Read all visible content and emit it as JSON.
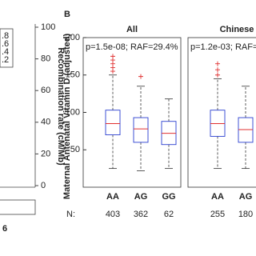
{
  "chart_data": [
    {
      "type": "scatter",
      "ylabel": "Recombination rate (cM/Mb)",
      "ylim": [
        0,
        100
      ],
      "yticks": [
        0,
        20,
        40,
        60,
        80,
        100
      ],
      "legend_labels": [
        ".8",
        ".6",
        ".4",
        ".2"
      ],
      "xticks": [
        6
      ],
      "color": "#1f3fbf"
    },
    {
      "type": "box",
      "panel_label": "B",
      "title": "All",
      "ylabel": "Maternal Antenatal Vitamin D (adjusted)",
      "annotation": "p=1.5e-08; RAF=29.4%",
      "ylim": [
        0,
        200
      ],
      "yticks": [
        50,
        100,
        150,
        200
      ],
      "categories": [
        "AA",
        "AG",
        "GG"
      ],
      "n_label": "N:",
      "n_values": [
        403,
        362,
        62
      ],
      "boxes": [
        {
          "whislo": 25,
          "q1": 70,
          "med": 85,
          "q3": 103,
          "whishi": 150,
          "fliers": [
            155,
            160,
            165,
            170,
            175
          ]
        },
        {
          "whislo": 22,
          "q1": 60,
          "med": 78,
          "q3": 93,
          "whishi": 135,
          "fliers": [
            148
          ]
        },
        {
          "whislo": 25,
          "q1": 57,
          "med": 72,
          "q3": 88,
          "whishi": 118,
          "fliers": []
        }
      ]
    },
    {
      "type": "box",
      "title": "Chinese",
      "annotation": "p=1.2e-03; RAF=",
      "ylim": [
        0,
        200
      ],
      "categories": [
        "AA",
        "AG"
      ],
      "n_values": [
        255,
        180
      ],
      "boxes": [
        {
          "whislo": 25,
          "q1": 68,
          "med": 85,
          "q3": 103,
          "whishi": 145,
          "fliers": [
            150,
            157,
            165
          ]
        },
        {
          "whislo": 25,
          "q1": 60,
          "med": 77,
          "q3": 93,
          "whishi": 135,
          "fliers": []
        }
      ]
    }
  ]
}
